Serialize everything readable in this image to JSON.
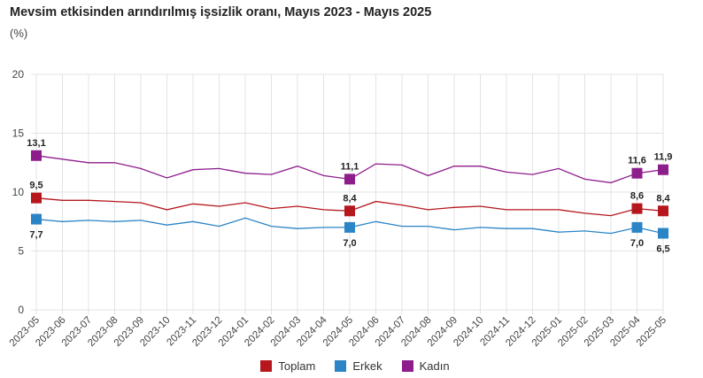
{
  "title": "Mevsim etkisinden arındırılmış işsizlik oranı, Mayıs 2023 - Mayıs 2025",
  "unit_label": "(%)",
  "chart_data": {
    "type": "line",
    "title": "Mevsim etkisinden arındırılmış işsizlik oranı, Mayıs 2023 - Mayıs 2025",
    "xlabel": "",
    "ylabel": "(%)",
    "ylim": [
      0,
      20
    ],
    "yticks": [
      0,
      5,
      10,
      15,
      20
    ],
    "ytick_labels": [
      "0",
      "5",
      "10",
      "15",
      "20"
    ],
    "grid": true,
    "legend_position": "bottom-center",
    "categories": [
      "2023-05",
      "2023-06",
      "2023-07",
      "2023-08",
      "2023-09",
      "2023-10",
      "2023-11",
      "2023-12",
      "2024-01",
      "2024-02",
      "2024-03",
      "2024-04",
      "2024-05",
      "2024-06",
      "2024-07",
      "2024-08",
      "2024-09",
      "2024-10",
      "2024-11",
      "2024-12",
      "2025-01",
      "2025-02",
      "2025-03",
      "2025-04",
      "2025-05"
    ],
    "series": [
      {
        "name": "Toplam",
        "color": "#b5171d",
        "values": [
          9.5,
          9.3,
          9.3,
          9.2,
          9.1,
          8.5,
          9.0,
          8.8,
          9.1,
          8.6,
          8.8,
          8.5,
          8.4,
          9.2,
          8.9,
          8.5,
          8.7,
          8.8,
          8.5,
          8.5,
          8.5,
          8.2,
          8.0,
          8.6,
          8.4
        ],
        "markers": [
          0,
          12,
          23,
          24
        ],
        "labels": {
          "0": "9,5",
          "12": "8,4",
          "23": "8,6",
          "24": "8,4"
        },
        "label_side": "above"
      },
      {
        "name": "Erkek",
        "color": "#2a84c6",
        "values": [
          7.7,
          7.5,
          7.6,
          7.5,
          7.6,
          7.2,
          7.5,
          7.1,
          7.8,
          7.1,
          6.9,
          7.0,
          7.0,
          7.5,
          7.1,
          7.1,
          6.8,
          7.0,
          6.9,
          6.9,
          6.6,
          6.7,
          6.5,
          7.0,
          6.5
        ],
        "markers": [
          0,
          12,
          23,
          24
        ],
        "labels": {
          "0": "7,7",
          "12": "7,0",
          "23": "7,0",
          "24": "6,5"
        },
        "label_side": "below"
      },
      {
        "name": "Kadın",
        "color": "#8e1d8c",
        "values": [
          13.1,
          12.8,
          12.5,
          12.5,
          12.0,
          11.2,
          11.9,
          12.0,
          11.6,
          11.5,
          12.2,
          11.4,
          11.1,
          12.4,
          12.3,
          11.4,
          12.2,
          12.2,
          11.7,
          11.5,
          12.0,
          11.1,
          10.8,
          11.6,
          11.9
        ],
        "markers": [
          0,
          12,
          23,
          24
        ],
        "labels": {
          "0": "13,1",
          "12": "11,1",
          "23": "11,6",
          "24": "11,9"
        },
        "label_side": "above"
      }
    ]
  }
}
